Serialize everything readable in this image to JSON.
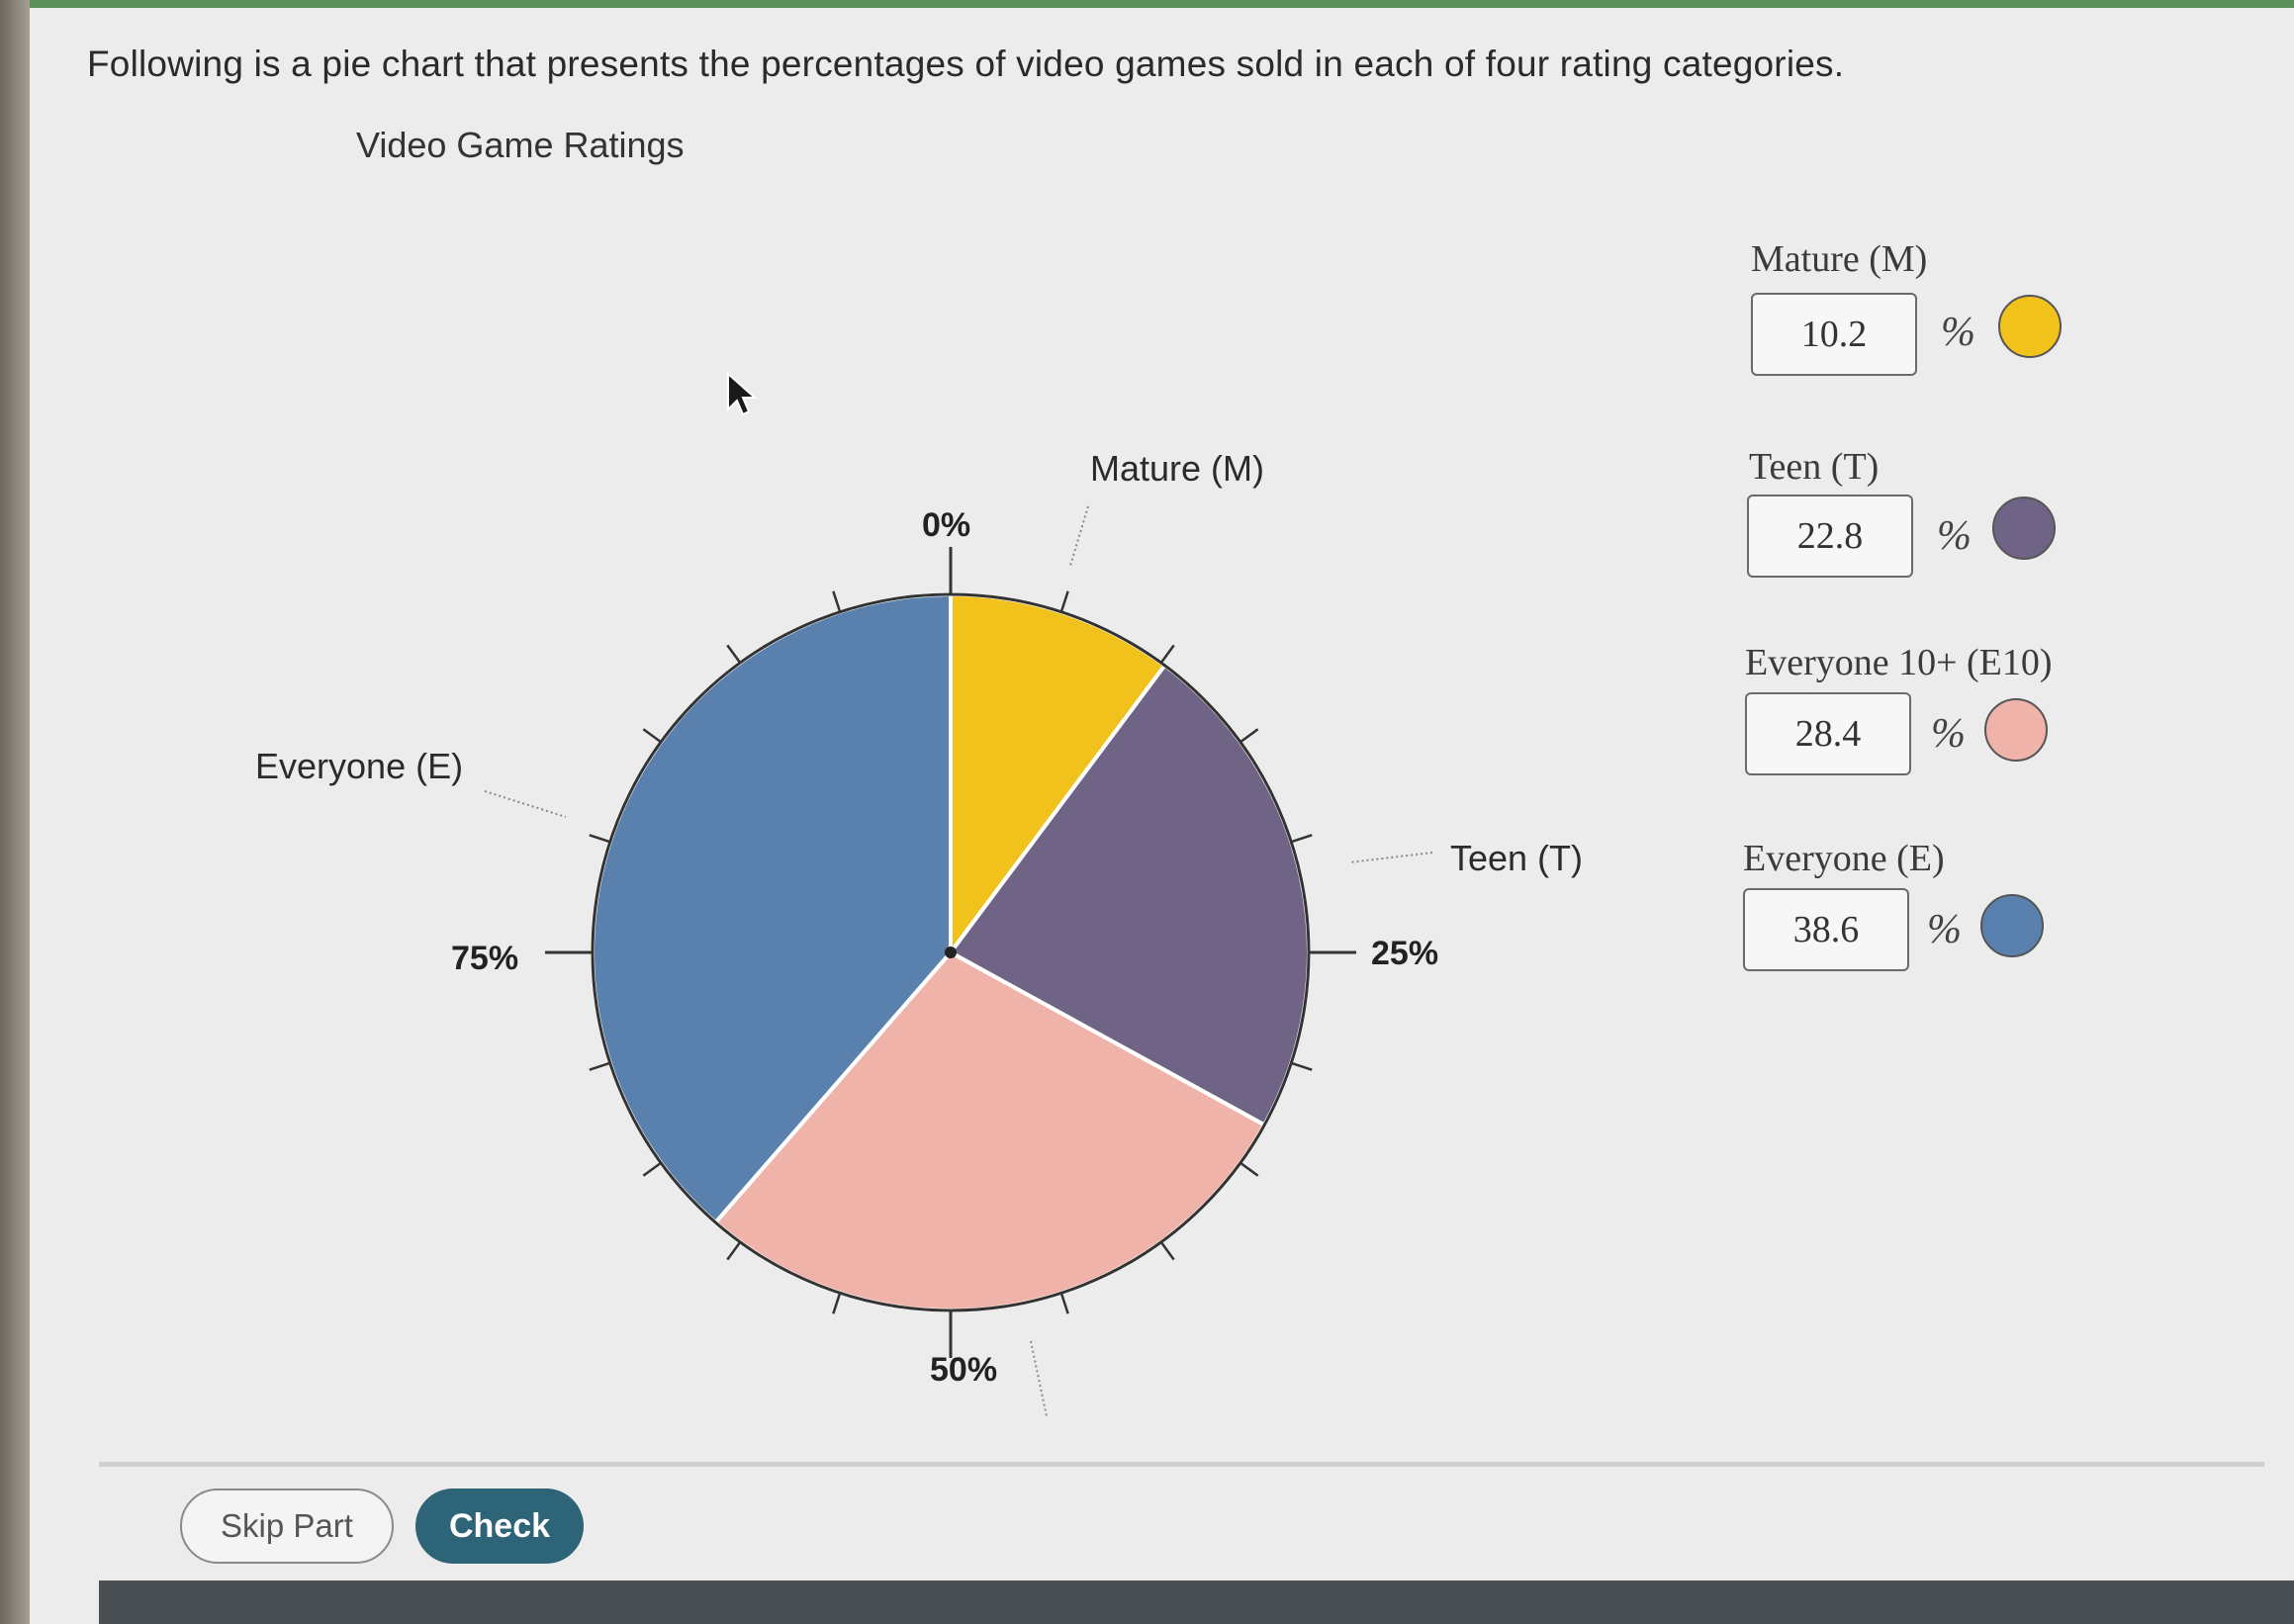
{
  "question_text": "Following is a pie chart that presents the percentages of video games sold in each of four rating categories.",
  "chart_data": {
    "type": "pie",
    "title": "Video Game Ratings",
    "slices": [
      {
        "label": "Mature (M)",
        "value": 10.2,
        "color": "#f2c21c"
      },
      {
        "label": "Teen (T)",
        "value": 22.8,
        "color": "#706486"
      },
      {
        "label": "Everyone 10+ (E10)",
        "value": 28.4,
        "color": "#efb3aa"
      },
      {
        "label": "Everyone (E)",
        "value": 38.6,
        "color": "#5a80ad"
      }
    ],
    "percent_marks": [
      "0%",
      "25%",
      "50%",
      "75%"
    ],
    "visible_slice_labels": {
      "mature": "Mature (M)",
      "teen": "Teen (T)",
      "everyone": "Everyone (E)"
    }
  },
  "entries": [
    {
      "label": "Mature (M)",
      "value": "10.2",
      "unit": "%",
      "color": "#f2c21c"
    },
    {
      "label": "Teen (T)",
      "value": "22.8",
      "unit": "%",
      "color": "#706486"
    },
    {
      "label": "Everyone 10+ (E10)",
      "value": "28.4",
      "unit": "%",
      "color": "#efb3aa"
    },
    {
      "label": "Everyone (E)",
      "value": "38.6",
      "unit": "%",
      "color": "#5a80ad"
    }
  ],
  "buttons": {
    "skip": "Skip Part",
    "check": "Check"
  },
  "icons": {
    "pointer": "mouse-cursor-icon"
  }
}
